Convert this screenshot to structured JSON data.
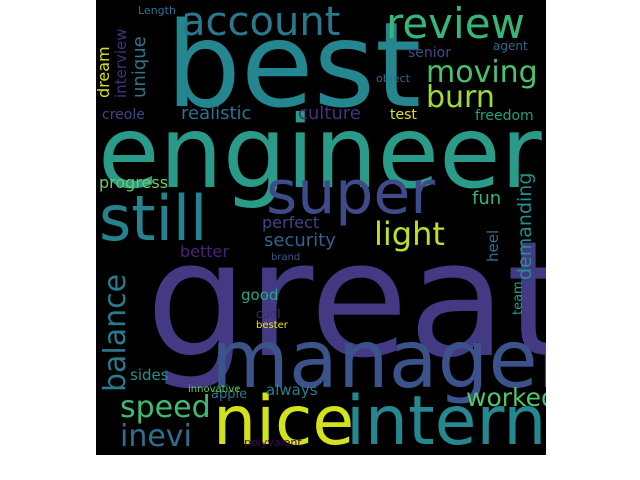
{
  "figure": {
    "type": "wordcloud",
    "background": "#000000",
    "words": [
      {
        "text": "great",
        "color": "#443983"
      },
      {
        "text": "engineer",
        "color": "#2a9a89"
      },
      {
        "text": "best",
        "color": "#24868e"
      },
      {
        "text": "manager",
        "color": "#3b528b"
      },
      {
        "text": "intern",
        "color": "#25878f"
      },
      {
        "text": "nice",
        "color": "#d2e21b"
      },
      {
        "text": "super",
        "color": "#3e4a89"
      },
      {
        "text": "still",
        "color": "#26828e"
      },
      {
        "text": "account",
        "color": "#2a788e"
      },
      {
        "text": "review",
        "color": "#35b779"
      },
      {
        "text": "moving",
        "color": "#4ac16d"
      },
      {
        "text": "burn",
        "color": "#a0da39"
      },
      {
        "text": "light",
        "color": "#bddf26"
      },
      {
        "text": "speed",
        "color": "#3fbc73"
      },
      {
        "text": "inevi",
        "color": "#2e6e8e"
      },
      {
        "text": "worked",
        "color": "#52c569"
      },
      {
        "text": "balance",
        "color": "#287c8e"
      },
      {
        "text": "security",
        "color": "#33638d"
      },
      {
        "text": "progress",
        "color": "#6ccd5a"
      },
      {
        "text": "realistic",
        "color": "#2c718e"
      },
      {
        "text": "culture",
        "color": "#46307e"
      },
      {
        "text": "demanding",
        "color": "#21918c"
      },
      {
        "text": "fun",
        "color": "#31b57b"
      },
      {
        "text": "dream",
        "color": "#d5e21a"
      },
      {
        "text": "unique",
        "color": "#2a788e"
      },
      {
        "text": "interview",
        "color": "#472f7d"
      },
      {
        "text": "Length",
        "color": "#2d708e"
      },
      {
        "text": "senior",
        "color": "#3e4c8a"
      },
      {
        "text": "agent",
        "color": "#31688e"
      },
      {
        "text": "object",
        "color": "#2e6f8e"
      },
      {
        "text": "creole",
        "color": "#404688"
      },
      {
        "text": "test",
        "color": "#e2e418"
      },
      {
        "text": "freedom",
        "color": "#1fa088"
      },
      {
        "text": "perfect",
        "color": "#414487"
      },
      {
        "text": "better",
        "color": "#482475"
      },
      {
        "text": "brand",
        "color": "#38598c"
      },
      {
        "text": "heel",
        "color": "#2c728e"
      },
      {
        "text": "team",
        "color": "#1f9f88"
      },
      {
        "text": "good",
        "color": "#22a884"
      },
      {
        "text": "cool",
        "color": "#482878"
      },
      {
        "text": "bester",
        "color": "#e5e419"
      },
      {
        "text": "sides",
        "color": "#1f948c"
      },
      {
        "text": "always",
        "color": "#277f8e"
      },
      {
        "text": "apple",
        "color": "#2b758e"
      },
      {
        "text": "innovative",
        "color": "#5ec962"
      },
      {
        "text": "polyvalent",
        "color": "#440154"
      }
    ]
  }
}
